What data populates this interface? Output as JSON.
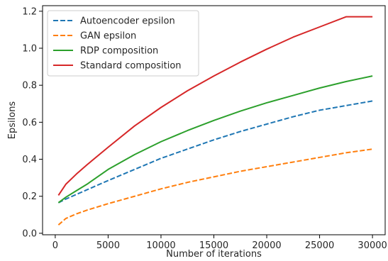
{
  "chart_data": {
    "type": "line",
    "title": "",
    "xlabel": "Number of iterations",
    "ylabel": "Epsilons",
    "xlim": [
      -1200,
      31200
    ],
    "ylim": [
      -0.008,
      1.23
    ],
    "xticks": [
      0,
      5000,
      10000,
      15000,
      20000,
      25000,
      30000
    ],
    "xtick_labels": [
      "0",
      "5000",
      "10000",
      "15000",
      "20000",
      "25000",
      "30000"
    ],
    "yticks": [
      0.0,
      0.2,
      0.4,
      0.6,
      0.8,
      1.0,
      1.2
    ],
    "ytick_labels": [
      "0.0",
      "0.2",
      "0.4",
      "0.6",
      "0.8",
      "1.0",
      "1.2"
    ],
    "grid": false,
    "legend_position": "top-left",
    "x": [
      300,
      1000,
      2000,
      3000,
      5000,
      7500,
      10000,
      12500,
      15000,
      17500,
      20000,
      22500,
      25000,
      27500,
      30000
    ],
    "series": [
      {
        "name": "Autoencoder epsilon",
        "style": "dashed",
        "color": "#1f77b4",
        "values": [
          0.165,
          0.185,
          0.21,
          0.235,
          0.285,
          0.345,
          0.405,
          0.455,
          0.505,
          0.55,
          0.59,
          0.63,
          0.665,
          0.69,
          0.715
        ]
      },
      {
        "name": "GAN epsilon",
        "style": "dashed",
        "color": "#ff7f0e",
        "values": [
          0.045,
          0.08,
          0.105,
          0.125,
          0.16,
          0.2,
          0.24,
          0.275,
          0.305,
          0.335,
          0.36,
          0.385,
          0.41,
          0.435,
          0.455
        ]
      },
      {
        "name": "RDP composition",
        "style": "solid",
        "color": "#2ca02c",
        "values": [
          0.165,
          0.195,
          0.23,
          0.265,
          0.345,
          0.425,
          0.495,
          0.555,
          0.61,
          0.66,
          0.705,
          0.745,
          0.785,
          0.82,
          0.85
        ]
      },
      {
        "name": "Standard composition",
        "style": "solid",
        "color": "#d62728",
        "values": [
          0.205,
          0.265,
          0.32,
          0.37,
          0.465,
          0.58,
          0.68,
          0.77,
          0.85,
          0.925,
          0.995,
          1.06,
          1.115,
          1.17,
          1.17
        ]
      }
    ]
  }
}
